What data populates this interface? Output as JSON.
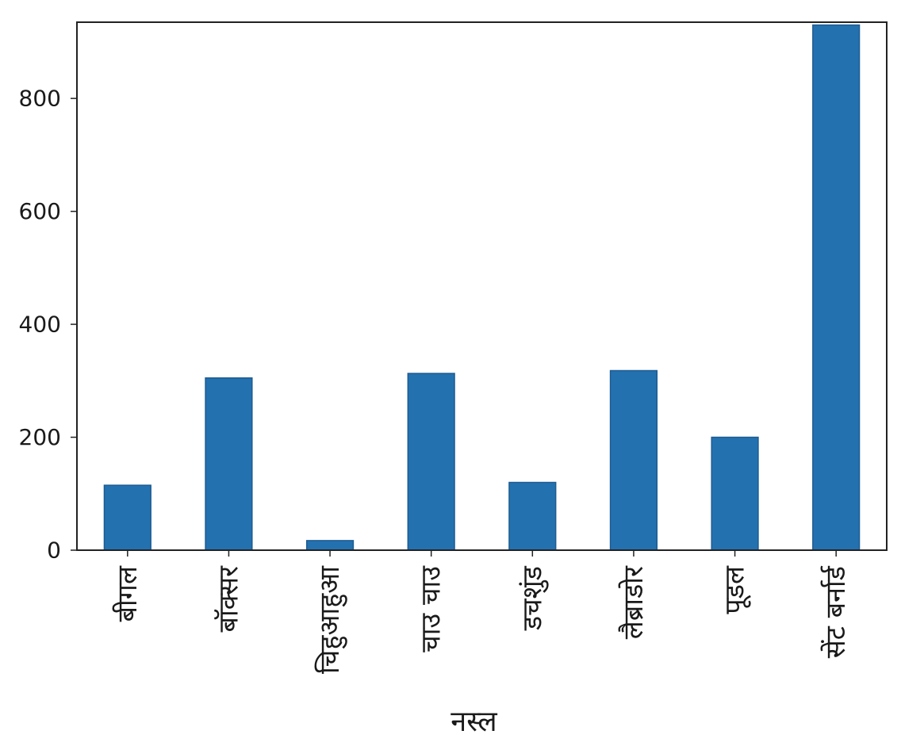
{
  "chart_data": {
    "type": "bar",
    "title": "",
    "xlabel": "नस्ल",
    "ylabel": "",
    "categories": [
      "बीगल",
      "बॉक्सर",
      "चिहुआहुआ",
      "चाउ चाउ",
      "डचशुंड",
      "लैब्राडोर",
      "पूडल",
      "सेंट बर्नार्ड"
    ],
    "values": [
      115,
      305,
      17,
      313,
      120,
      318,
      200,
      930
    ],
    "ylim": [
      0,
      935
    ],
    "yticks": [
      0,
      200,
      400,
      600,
      800
    ],
    "ytick_labels": [
      "0",
      "200",
      "400",
      "600",
      "800"
    ],
    "grid": false,
    "legend": "none",
    "bar_color": "#2471b0",
    "bar_edge_color": "#1d5c92"
  }
}
